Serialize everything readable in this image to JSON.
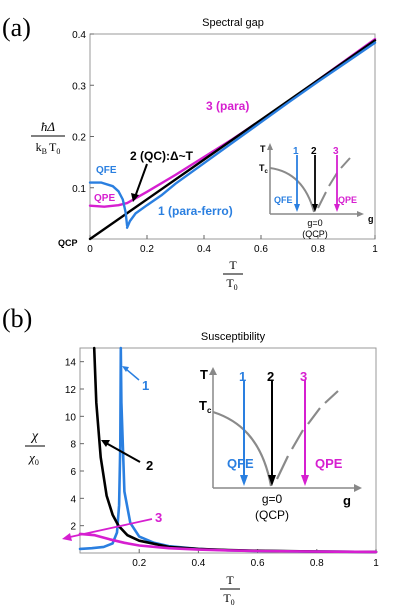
{
  "colors": {
    "black": "#000000",
    "blue": "#2a7fe0",
    "magenta": "#d61fd0",
    "gray": "#8a8a8a"
  },
  "chart_data": [
    {
      "type": "line",
      "panel_label": "(a)",
      "title": "Spectral gap",
      "ylabel_num": "ħΔ",
      "ylabel_den_main": "k",
      "ylabel_den_sub": "B",
      "ylabel_den_tail": "T",
      "ylabel_den_tail_sub": "0",
      "xlabel_num": "T",
      "xlabel_den_main": "T",
      "xlabel_den_sub": "0",
      "xlim": [
        0,
        1
      ],
      "ylim": [
        0,
        0.4
      ],
      "xticks": [
        "0",
        "0.2",
        "0.4",
        "0.6",
        "0.8",
        "1"
      ],
      "xtick_values": [
        0,
        0.2,
        0.4,
        0.6,
        0.8,
        1
      ],
      "yticks": [
        "0.1",
        "0.2",
        "0.3",
        "0.4"
      ],
      "ytick_values": [
        0.1,
        0.2,
        0.3,
        0.4
      ],
      "qcp_label": "QCP",
      "series": [
        {
          "name": "3 (para)",
          "color": "magenta",
          "x": [
            0,
            0.05,
            0.1,
            0.13,
            0.2,
            0.3,
            0.4,
            0.5,
            0.6,
            0.7,
            0.8,
            0.9,
            1.0
          ],
          "y": [
            0.065,
            0.063,
            0.066,
            0.07,
            0.092,
            0.125,
            0.16,
            0.195,
            0.232,
            0.27,
            0.31,
            0.35,
            0.39
          ]
        },
        {
          "name": "2 (QC):Δ~T",
          "color": "black",
          "x": [
            0,
            0.2,
            0.4,
            0.6,
            0.8,
            1.0
          ],
          "y": [
            0,
            0.0775,
            0.155,
            0.2325,
            0.31,
            0.3875
          ]
        },
        {
          "name": "QFE",
          "color": "blue",
          "x": [
            0,
            0.04,
            0.08,
            0.1,
            0.115,
            0.125,
            0.13
          ],
          "y": [
            0.11,
            0.11,
            0.103,
            0.093,
            0.077,
            0.052,
            0.026
          ]
        },
        {
          "name": "1 (para-ferro)",
          "color": "blue",
          "x": [
            0.13,
            0.14,
            0.16,
            0.2,
            0.25,
            0.3,
            0.4,
            0.5,
            0.6,
            0.7,
            0.8,
            0.9,
            1.0
          ],
          "y": [
            0.022,
            0.035,
            0.05,
            0.066,
            0.085,
            0.108,
            0.148,
            0.188,
            0.228,
            0.268,
            0.307,
            0.345,
            0.383
          ]
        }
      ],
      "annotations": {
        "label3": "3 (para)",
        "label2": "2 (QC):Δ~T",
        "label1": "1 (para-ferro)",
        "qfe": "QFE",
        "qpe": "QPE"
      },
      "inset": {
        "t_axis": "T",
        "tc_main": "T",
        "tc_sub": "c",
        "g_axis": "g",
        "arrow1": "1",
        "arrow2": "2",
        "arrow3": "3",
        "qfe": "QFE",
        "qpe": "QPE",
        "g0": "g=0",
        "qcp": "(QCP)"
      }
    },
    {
      "type": "line",
      "panel_label": "(b)",
      "title": "Susceptibility",
      "ylabel_num": "χ",
      "ylabel_den_main": "χ",
      "ylabel_den_sub": "0",
      "xlabel_num": "T",
      "xlabel_den_main": "T",
      "xlabel_den_sub": "0",
      "xlim": [
        0,
        1
      ],
      "ylim": [
        0,
        15
      ],
      "xticks": [
        "0.2",
        "0.4",
        "0.6",
        "0.8",
        "1"
      ],
      "xtick_values": [
        0.2,
        0.4,
        0.6,
        0.8,
        1
      ],
      "yticks": [
        "2",
        "4",
        "6",
        "8",
        "10",
        "12",
        "14"
      ],
      "ytick_values": [
        2,
        4,
        6,
        8,
        10,
        12,
        14
      ],
      "series": [
        {
          "name": "1",
          "color": "blue",
          "x": [
            0.0,
            0.04,
            0.08,
            0.11,
            0.125,
            0.132,
            0.136,
            0.138,
            0.14,
            0.15,
            0.17,
            0.2,
            0.25,
            0.3,
            0.4,
            0.5,
            0.6,
            0.8,
            1.0
          ],
          "y": [
            0.3,
            0.35,
            0.45,
            0.7,
            1.5,
            3.5,
            8.0,
            15.0,
            11.0,
            4.5,
            2.2,
            1.2,
            0.75,
            0.5,
            0.3,
            0.2,
            0.15,
            0.1,
            0.08
          ]
        },
        {
          "name": "2",
          "color": "black",
          "x": [
            0.048,
            0.055,
            0.07,
            0.09,
            0.11,
            0.13,
            0.16,
            0.2,
            0.3,
            0.4,
            0.5,
            0.6,
            0.8,
            1.0
          ],
          "y": [
            15.0,
            11.0,
            7.0,
            4.2,
            2.8,
            2.0,
            1.3,
            0.9,
            0.45,
            0.3,
            0.22,
            0.17,
            0.11,
            0.08
          ]
        },
        {
          "name": "3",
          "color": "magenta",
          "x": [
            0.0,
            0.05,
            0.1,
            0.15,
            0.2,
            0.3,
            0.4,
            0.5,
            0.6,
            0.8,
            1.0
          ],
          "y": [
            1.4,
            1.3,
            1.0,
            0.75,
            0.55,
            0.35,
            0.25,
            0.19,
            0.15,
            0.1,
            0.08
          ]
        }
      ],
      "annotations": {
        "label1": "1",
        "label2": "2",
        "label3": "3"
      },
      "inset": {
        "t_axis": "T",
        "tc_main": "T",
        "tc_sub": "c",
        "g_axis": "g",
        "arrow1": "1",
        "arrow2": "2",
        "arrow3": "3",
        "qfe": "QFE",
        "qpe": "QPE",
        "g0": "g=0",
        "qcp": "(QCP)"
      }
    }
  ]
}
